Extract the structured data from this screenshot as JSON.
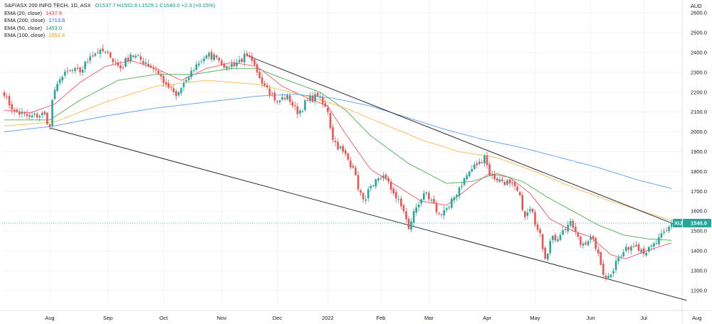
{
  "header": {
    "symbol": "S&P/ASX 200 INFO TECH, 1D, ASX",
    "ohlc_text": "O1537.7  H1552.8  L1529.1  C1540.0  +2.3 (+0.15%)"
  },
  "currency": "AUD",
  "legend": [
    {
      "label": "EMA (20, close)",
      "value": "1437.9",
      "color": "#f23645"
    },
    {
      "label": "EMA (200, close)",
      "value": "1713.8",
      "color": "#2962ff"
    },
    {
      "label": "EMA (50, close)",
      "value": "1453.0",
      "color": "#089981"
    },
    {
      "label": "EMA (100, close)",
      "value": "1552.4",
      "color": "#ff9800"
    }
  ],
  "price_badge": {
    "ticker": "XIJ",
    "value": "1540.0",
    "color": "#26a69a"
  },
  "colors": {
    "up": "#26a69a",
    "down": "#ef5350",
    "ema20": "#f7525f",
    "ema50": "#4caf50",
    "ema100": "#ffb74d",
    "ema200": "#5b9cf6",
    "trendline": "#131722"
  },
  "chart_data": {
    "type": "candlestick",
    "y_axis": {
      "ticks": [
        1200,
        1300,
        1400,
        1500,
        1600,
        1700,
        1800,
        1900,
        2000,
        2100,
        2200,
        2300,
        2400,
        2500,
        2600
      ],
      "range": [
        1135,
        2665
      ],
      "unit": "AUD"
    },
    "x_axis": {
      "ticks": [
        {
          "label": "Aug",
          "index": 18
        },
        {
          "label": "Sep",
          "index": 41
        },
        {
          "label": "Oct",
          "index": 63
        },
        {
          "label": "Nov",
          "index": 86
        },
        {
          "label": "Dec",
          "index": 108
        },
        {
          "label": "2022",
          "index": 128
        },
        {
          "label": "Feb",
          "index": 149
        },
        {
          "label": "Mar",
          "index": 168
        },
        {
          "label": "Apr",
          "index": 191
        },
        {
          "label": "May",
          "index": 210
        },
        {
          "label": "Jun",
          "index": 232
        },
        {
          "label": "Jul",
          "index": 253
        },
        {
          "label": "Aug",
          "index": 274
        }
      ]
    },
    "candle_count": 270,
    "close_anchors": [
      [
        0,
        2180
      ],
      [
        4,
        2105
      ],
      [
        10,
        2075
      ],
      [
        16,
        2090
      ],
      [
        18,
        2025
      ],
      [
        19,
        2160
      ],
      [
        22,
        2265
      ],
      [
        26,
        2310
      ],
      [
        30,
        2300
      ],
      [
        34,
        2380
      ],
      [
        38,
        2415
      ],
      [
        42,
        2375
      ],
      [
        46,
        2320
      ],
      [
        50,
        2390
      ],
      [
        56,
        2350
      ],
      [
        60,
        2310
      ],
      [
        64,
        2240
      ],
      [
        68,
        2180
      ],
      [
        72,
        2260
      ],
      [
        76,
        2340
      ],
      [
        80,
        2385
      ],
      [
        84,
        2375
      ],
      [
        88,
        2330
      ],
      [
        92,
        2350
      ],
      [
        96,
        2385
      ],
      [
        100,
        2300
      ],
      [
        104,
        2225
      ],
      [
        108,
        2150
      ],
      [
        112,
        2185
      ],
      [
        116,
        2090
      ],
      [
        120,
        2160
      ],
      [
        124,
        2180
      ],
      [
        128,
        2100
      ],
      [
        130,
        1960
      ],
      [
        134,
        1900
      ],
      [
        138,
        1820
      ],
      [
        140,
        1710
      ],
      [
        142,
        1660
      ],
      [
        146,
        1730
      ],
      [
        150,
        1780
      ],
      [
        154,
        1690
      ],
      [
        158,
        1600
      ],
      [
        160,
        1510
      ],
      [
        162,
        1600
      ],
      [
        166,
        1690
      ],
      [
        168,
        1660
      ],
      [
        172,
        1590
      ],
      [
        176,
        1620
      ],
      [
        180,
        1720
      ],
      [
        184,
        1800
      ],
      [
        188,
        1850
      ],
      [
        190,
        1880
      ],
      [
        192,
        1780
      ],
      [
        196,
        1760
      ],
      [
        200,
        1740
      ],
      [
        204,
        1680
      ],
      [
        206,
        1570
      ],
      [
        208,
        1610
      ],
      [
        212,
        1490
      ],
      [
        214,
        1360
      ],
      [
        216,
        1450
      ],
      [
        220,
        1480
      ],
      [
        224,
        1550
      ],
      [
        228,
        1430
      ],
      [
        232,
        1470
      ],
      [
        234,
        1410
      ],
      [
        236,
        1330
      ],
      [
        238,
        1260
      ],
      [
        240,
        1280
      ],
      [
        242,
        1350
      ],
      [
        244,
        1370
      ],
      [
        246,
        1420
      ],
      [
        250,
        1430
      ],
      [
        254,
        1390
      ],
      [
        258,
        1440
      ],
      [
        262,
        1500
      ],
      [
        264,
        1540
      ]
    ],
    "ema": [
      {
        "name": "EMA (20, close)",
        "points": [
          [
            0,
            2110
          ],
          [
            10,
            2095
          ],
          [
            20,
            2140
          ],
          [
            30,
            2250
          ],
          [
            40,
            2330
          ],
          [
            50,
            2360
          ],
          [
            60,
            2320
          ],
          [
            70,
            2260
          ],
          [
            80,
            2320
          ],
          [
            90,
            2350
          ],
          [
            100,
            2330
          ],
          [
            110,
            2230
          ],
          [
            120,
            2170
          ],
          [
            128,
            2130
          ],
          [
            135,
            1990
          ],
          [
            145,
            1810
          ],
          [
            155,
            1730
          ],
          [
            165,
            1650
          ],
          [
            175,
            1630
          ],
          [
            185,
            1730
          ],
          [
            192,
            1790
          ],
          [
            200,
            1770
          ],
          [
            208,
            1690
          ],
          [
            216,
            1560
          ],
          [
            225,
            1500
          ],
          [
            232,
            1470
          ],
          [
            240,
            1380
          ],
          [
            246,
            1360
          ],
          [
            254,
            1400
          ],
          [
            264,
            1440
          ]
        ]
      },
      {
        "name": "EMA (50, close)",
        "points": [
          [
            0,
            2060
          ],
          [
            18,
            2060
          ],
          [
            30,
            2160
          ],
          [
            45,
            2260
          ],
          [
            60,
            2290
          ],
          [
            75,
            2290
          ],
          [
            90,
            2320
          ],
          [
            100,
            2320
          ],
          [
            110,
            2270
          ],
          [
            125,
            2200
          ],
          [
            135,
            2110
          ],
          [
            145,
            1980
          ],
          [
            160,
            1840
          ],
          [
            175,
            1740
          ],
          [
            185,
            1750
          ],
          [
            195,
            1790
          ],
          [
            205,
            1750
          ],
          [
            215,
            1670
          ],
          [
            225,
            1600
          ],
          [
            235,
            1530
          ],
          [
            245,
            1480
          ],
          [
            255,
            1460
          ],
          [
            264,
            1453
          ]
        ]
      },
      {
        "name": "EMA (100, close)",
        "points": [
          [
            0,
            2030
          ],
          [
            20,
            2050
          ],
          [
            40,
            2150
          ],
          [
            60,
            2230
          ],
          [
            80,
            2260
          ],
          [
            100,
            2240
          ],
          [
            120,
            2180
          ],
          [
            135,
            2120
          ],
          [
            150,
            2040
          ],
          [
            165,
            1960
          ],
          [
            180,
            1900
          ],
          [
            195,
            1870
          ],
          [
            210,
            1800
          ],
          [
            225,
            1720
          ],
          [
            240,
            1650
          ],
          [
            255,
            1590
          ],
          [
            264,
            1552
          ]
        ]
      },
      {
        "name": "EMA (200, close)",
        "points": [
          [
            0,
            2000
          ],
          [
            20,
            2030
          ],
          [
            40,
            2080
          ],
          [
            60,
            2120
          ],
          [
            80,
            2150
          ],
          [
            100,
            2180
          ],
          [
            115,
            2190
          ],
          [
            130,
            2170
          ],
          [
            145,
            2130
          ],
          [
            160,
            2070
          ],
          [
            175,
            2010
          ],
          [
            190,
            1960
          ],
          [
            205,
            1920
          ],
          [
            220,
            1870
          ],
          [
            235,
            1820
          ],
          [
            250,
            1760
          ],
          [
            264,
            1714
          ]
        ]
      }
    ],
    "trendlines": [
      {
        "from": [
          18,
          2020
        ],
        "to": [
          270,
          1150
        ]
      },
      {
        "from": [
          96,
          2385
        ],
        "to": [
          266,
          1530
        ]
      }
    ],
    "last_price_line": 1540.0
  }
}
